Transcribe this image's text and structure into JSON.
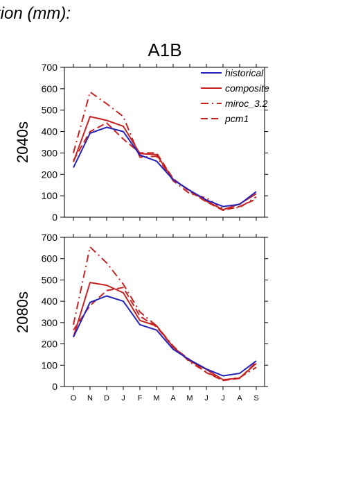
{
  "page": {
    "title": "tion (mm):",
    "scenario_label": "A1B"
  },
  "legend": [
    {
      "key": "historical",
      "label": "historical",
      "color": "#2222bb",
      "dash": "solid"
    },
    {
      "key": "composite",
      "label": "composite",
      "color": "#c62222",
      "dash": "solid"
    },
    {
      "key": "miroc",
      "label": "miroc_3.2",
      "color": "#c62222",
      "dash": "dashdot"
    },
    {
      "key": "pcm1",
      "label": "pcm1",
      "color": "#c62222",
      "dash": "dashed"
    }
  ],
  "chart_data": [
    {
      "type": "line",
      "period_label": "2040s",
      "categories": [
        "O",
        "N",
        "D",
        "J",
        "F",
        "M",
        "A",
        "M",
        "J",
        "J",
        "A",
        "S"
      ],
      "ylim": [
        0,
        700
      ],
      "yticks": [
        0,
        100,
        200,
        300,
        400,
        500,
        600,
        700
      ],
      "show_xtick_labels": false,
      "series": [
        {
          "name": "historical",
          "values": [
            232,
            392,
            420,
            400,
            290,
            262,
            175,
            125,
            80,
            50,
            60,
            120
          ]
        },
        {
          "name": "composite",
          "values": [
            258,
            470,
            452,
            425,
            297,
            292,
            177,
            125,
            75,
            35,
            62,
            110
          ]
        },
        {
          "name": "miroc_3.2",
          "values": [
            300,
            585,
            530,
            470,
            280,
            285,
            170,
            110,
            90,
            40,
            45,
            95
          ]
        },
        {
          "name": "pcm1",
          "values": [
            265,
            400,
            440,
            365,
            300,
            300,
            180,
            120,
            72,
            32,
            50,
            85
          ]
        }
      ]
    },
    {
      "type": "line",
      "period_label": "2080s",
      "categories": [
        "O",
        "N",
        "D",
        "J",
        "F",
        "M",
        "A",
        "M",
        "J",
        "J",
        "A",
        "S"
      ],
      "ylim": [
        0,
        700
      ],
      "yticks": [
        0,
        100,
        200,
        300,
        400,
        500,
        600,
        700
      ],
      "show_xtick_labels": true,
      "series": [
        {
          "name": "historical",
          "values": [
            232,
            395,
            425,
            400,
            290,
            265,
            175,
            125,
            82,
            50,
            62,
            120
          ]
        },
        {
          "name": "composite",
          "values": [
            232,
            488,
            475,
            440,
            310,
            285,
            185,
            120,
            80,
            32,
            40,
            108
          ]
        },
        {
          "name": "miroc_3.2",
          "values": [
            290,
            655,
            580,
            480,
            350,
            285,
            190,
            115,
            68,
            30,
            42,
            90
          ]
        },
        {
          "name": "pcm1",
          "values": [
            265,
            380,
            450,
            465,
            330,
            280,
            185,
            125,
            65,
            28,
            38,
            115
          ]
        }
      ]
    }
  ]
}
